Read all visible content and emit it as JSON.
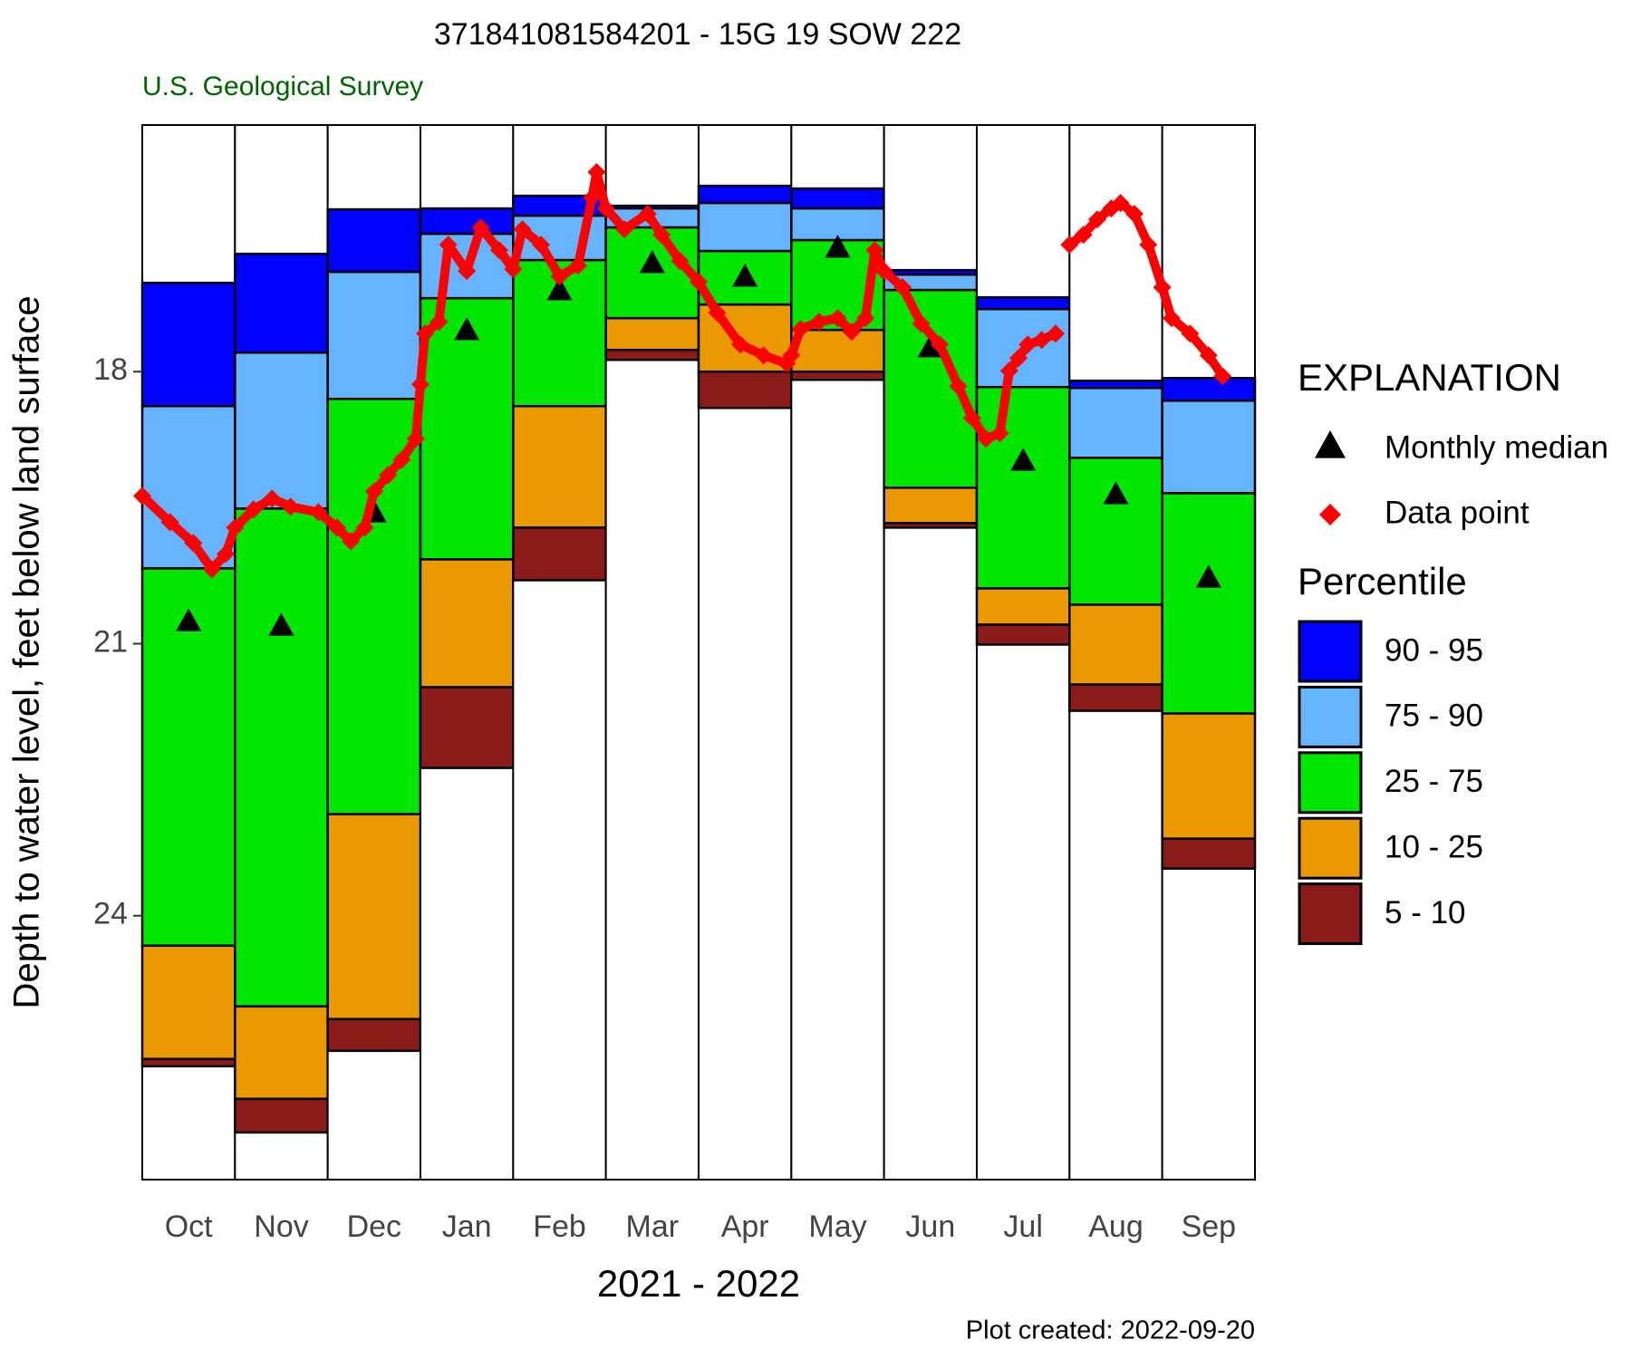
{
  "chart_data": {
    "type": "percentile",
    "title": "371841081584201 - 15G 19 SOW 222",
    "subtitle": "U.S. Geological Survey",
    "x_label": "2021 - 2022",
    "y_label": "Depth to water level, feet below land surface",
    "footnote": "Plot created: 2022-09-20",
    "categories": [
      "Oct",
      "Nov",
      "Dec",
      "Jan",
      "Feb",
      "Mar",
      "Apr",
      "May",
      "Jun",
      "Jul",
      "Aug",
      "Sep"
    ],
    "ylim": [
      26.91,
      15.28
    ],
    "yticks": [
      18,
      21,
      24
    ],
    "xlim": [
      0,
      12
    ],
    "legend_title": "EXPLANATION",
    "percentile_title": "Percentile",
    "percentile_levels": [
      [
        17.02,
        16.7,
        16.21,
        16.2,
        16.06,
        16.17,
        15.95,
        15.98,
        16.88,
        17.18,
        18.1,
        18.07
      ],
      [
        18.38,
        17.79,
        16.9,
        16.48,
        16.28,
        16.2,
        16.14,
        16.2,
        16.93,
        17.31,
        18.18,
        18.32
      ],
      [
        20.17,
        19.51,
        18.3,
        17.19,
        16.77,
        16.41,
        16.67,
        16.55,
        17.1,
        18.17,
        18.95,
        19.34
      ],
      [
        24.33,
        25.0,
        22.88,
        20.07,
        18.38,
        17.41,
        17.26,
        17.54,
        19.28,
        20.39,
        20.57,
        21.77
      ],
      [
        25.58,
        26.02,
        25.14,
        21.48,
        19.72,
        17.76,
        18.0,
        18.0,
        19.67,
        20.79,
        21.45,
        23.15
      ],
      [
        25.66,
        26.39,
        25.49,
        22.37,
        20.3,
        17.87,
        18.4,
        18.09,
        19.72,
        21.01,
        21.74,
        23.48
      ]
    ],
    "bands": [
      {
        "name": "90 - 95",
        "color": "#0000ff"
      },
      {
        "name": "75 - 90",
        "color": "#66b3ff"
      },
      {
        "name": "25 - 75",
        "color": "#00e600"
      },
      {
        "name": "10 - 25",
        "color": "#eb9900"
      },
      {
        "name": "5 - 10",
        "color": "#8b1a1a"
      }
    ],
    "median": {
      "name": "Monthly median",
      "color": "#000000",
      "values": [
        20.75,
        20.8,
        19.55,
        17.54,
        17.1,
        16.8,
        16.95,
        16.63,
        17.73,
        18.98,
        19.35,
        20.27
      ]
    },
    "points": {
      "name": "Data point",
      "color": "#ff0000",
      "x": [
        0,
        0.3,
        0.55,
        0.75,
        0.9,
        1.0,
        1.2,
        1.4,
        1.6,
        1.9,
        2.1,
        2.25,
        2.4,
        2.5,
        2.65,
        2.8,
        2.95,
        3.0,
        3.05,
        3.2,
        3.3,
        3.5,
        3.65,
        3.85,
        4.0,
        4.1,
        4.3,
        4.5,
        4.7,
        4.85,
        4.9,
        5.0,
        5.2,
        5.45,
        5.6,
        5.8,
        6.0,
        6.2,
        6.45,
        6.7,
        6.95,
        7.0,
        7.1,
        7.3,
        7.5,
        7.65,
        7.8,
        7.9,
        8.0,
        8.2,
        8.4,
        8.6,
        8.8,
        8.95,
        9.1,
        9.25,
        9.35,
        9.45,
        9.55,
        9.7,
        9.85,
        9.92,
        10.0,
        10.15,
        10.3,
        10.45,
        10.55,
        10.7,
        10.85,
        11.0,
        11.1,
        11.3,
        11.5,
        11.65
      ],
      "values": [
        19.37,
        19.66,
        19.89,
        20.18,
        20.01,
        19.72,
        19.52,
        19.4,
        19.49,
        19.55,
        19.72,
        19.87,
        19.72,
        19.32,
        19.14,
        18.97,
        18.74,
        18.14,
        17.58,
        17.45,
        16.6,
        16.89,
        16.41,
        16.66,
        16.87,
        16.43,
        16.6,
        16.95,
        16.83,
        16.08,
        15.8,
        16.2,
        16.43,
        16.26,
        16.49,
        16.78,
        17.01,
        17.35,
        17.7,
        17.82,
        17.91,
        17.82,
        17.53,
        17.45,
        17.41,
        17.56,
        17.41,
        16.66,
        16.89,
        17.07,
        17.47,
        17.7,
        18.16,
        18.51,
        18.74,
        18.68,
        17.99,
        17.85,
        17.7,
        17.65,
        17.58,
        null,
        16.6,
        16.49,
        16.32,
        16.2,
        16.14,
        16.26,
        16.6,
        17.07,
        17.41,
        17.58,
        17.82,
        18.05
      ]
    }
  }
}
